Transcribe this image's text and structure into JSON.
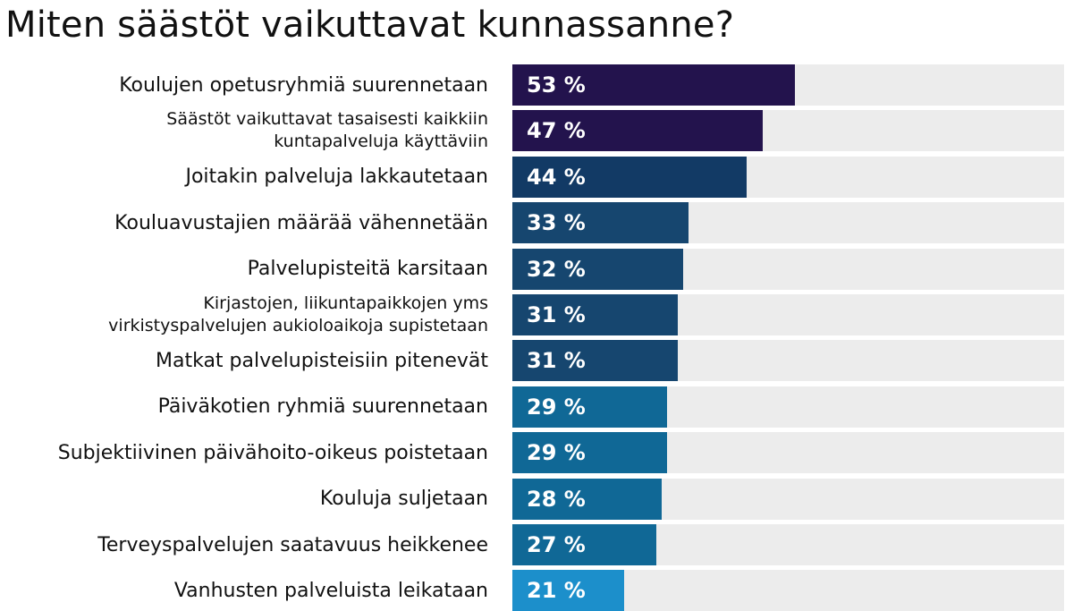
{
  "title": "Miten säästöt vaikuttavat kunnassanne?",
  "chart_data": {
    "type": "bar",
    "orientation": "horizontal",
    "title": "Miten säästöt vaikuttavat kunnassanne?",
    "xlim": [
      0,
      100
    ],
    "unit": "%",
    "grid": false,
    "categories": [
      "Koulujen opetusryhmiä suurennetaan",
      "Säästöt vaikuttavat tasaisesti kaikkiin\nkuntapalveluja käyttäviin",
      "Joitakin palveluja lakkautetaan",
      "Kouluavustajien määrää vähennetään",
      "Palvelupisteitä karsitaan",
      "Kirjastojen, liikuntapaikkojen yms\nvirkistyspalvelujen aukioloaikoja supistetaan",
      "Matkat palvelupisteisiin pitenevät",
      "Päiväkotien ryhmiä suurennetaan",
      "Subjektiivinen päivähoito-oikeus poistetaan",
      "Kouluja suljetaan",
      "Terveyspalvelujen saatavuus heikkenee",
      "Vanhusten palveluista leikataan"
    ],
    "values": [
      53,
      47,
      44,
      33,
      32,
      31,
      31,
      29,
      29,
      28,
      27,
      21
    ],
    "value_labels": [
      "53 %",
      "47 %",
      "44 %",
      "33 %",
      "32 %",
      "31 %",
      "31 %",
      "29 %",
      "29 %",
      "28 %",
      "27 %",
      "21 %"
    ],
    "bar_colors": [
      "#23134d",
      "#23134d",
      "#123a65",
      "#16466f",
      "#16466f",
      "#16466f",
      "#16466f",
      "#106896",
      "#106896",
      "#106896",
      "#106896",
      "#1c8fcb"
    ],
    "track_color": "#ececec"
  }
}
